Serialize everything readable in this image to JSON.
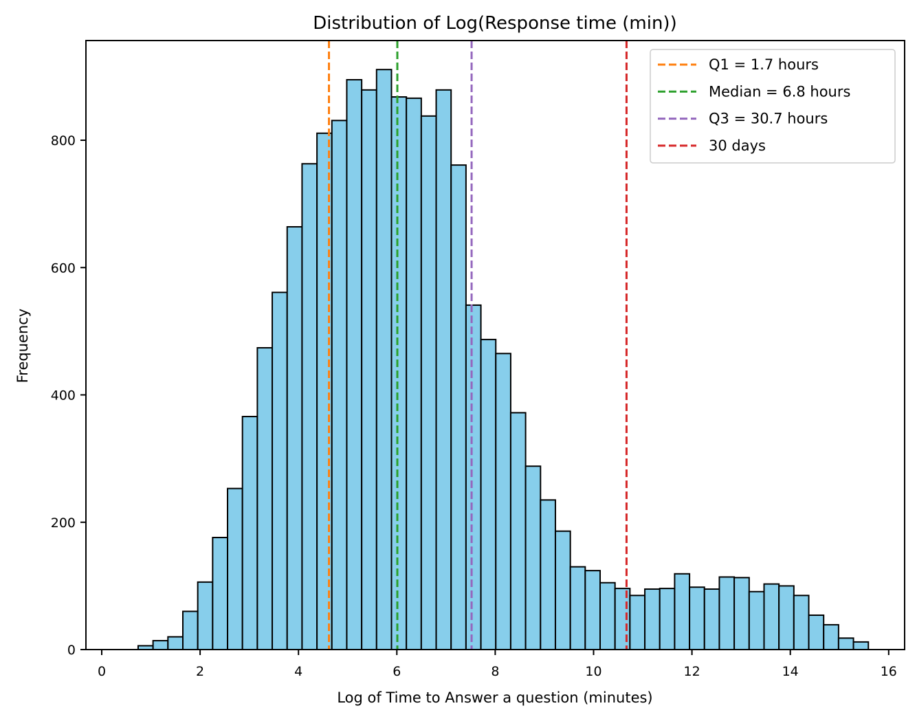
{
  "chart_data": {
    "type": "bar",
    "title": "Distribution of Log(Response time (min))",
    "xlabel": "Log of Time to Answer a question (minutes)",
    "ylabel": "Frequency",
    "xlim": [
      -0.3,
      16.3
    ],
    "ylim": [
      0,
      957
    ],
    "xticks": [
      0,
      2,
      4,
      6,
      8,
      10,
      12,
      14,
      16
    ],
    "yticks": [
      0,
      200,
      400,
      600,
      800
    ],
    "bin_start": 0.74,
    "bin_width": 0.303,
    "bar_color": "#87ceeb",
    "edge_color": "#000000",
    "values": [
      6,
      14,
      20,
      60,
      106,
      176,
      253,
      366,
      474,
      561,
      664,
      763,
      811,
      831,
      895,
      879,
      911,
      868,
      866,
      838,
      879,
      761,
      541,
      487,
      465,
      372,
      288,
      235,
      186,
      130,
      124,
      105,
      96,
      85,
      95,
      96,
      119,
      98,
      95,
      114,
      113,
      91,
      103,
      100,
      85,
      54,
      39,
      18,
      12
    ],
    "vlines": [
      {
        "x": 4.62,
        "label": "Q1 = 1.7 hours",
        "color": "#ff7f0e"
      },
      {
        "x": 6.01,
        "label": "Median = 6.8 hours",
        "color": "#2ca02c"
      },
      {
        "x": 7.52,
        "label": "Q3 = 30.7 hours",
        "color": "#9467bd"
      },
      {
        "x": 10.67,
        "label": "30 days",
        "color": "#d62728"
      }
    ],
    "legend_position": "top-right"
  }
}
